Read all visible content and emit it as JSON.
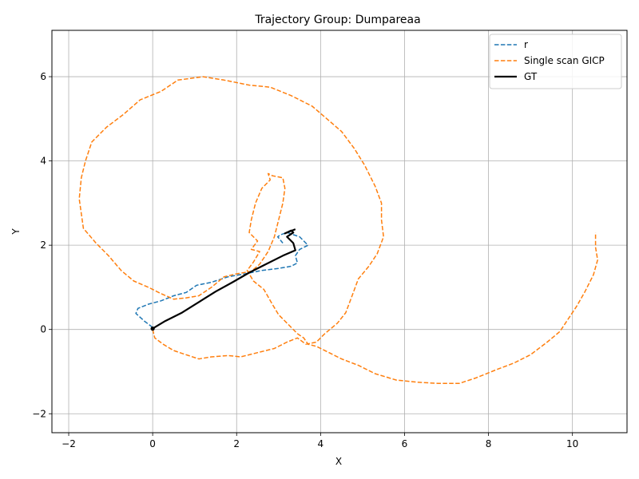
{
  "chart_data": {
    "type": "line",
    "title": "Trajectory Group: Dumpareaa",
    "xlabel": "X",
    "ylabel": "Y",
    "xlim": [
      -2.4,
      11.3
    ],
    "ylim": [
      -2.45,
      7.1
    ],
    "xticks": [
      -2,
      0,
      2,
      4,
      6,
      8,
      10
    ],
    "yticks": [
      -2,
      0,
      2,
      4,
      6
    ],
    "grid": true,
    "legend_position": "top-right",
    "series": [
      {
        "name": "r",
        "color": "#1f77b4",
        "style": "dashed",
        "points": [
          [
            0.0,
            0.05
          ],
          [
            -0.2,
            0.2
          ],
          [
            -0.4,
            0.38
          ],
          [
            -0.35,
            0.5
          ],
          [
            -0.1,
            0.6
          ],
          [
            0.2,
            0.68
          ],
          [
            0.5,
            0.8
          ],
          [
            0.8,
            0.88
          ],
          [
            1.05,
            1.05
          ],
          [
            1.4,
            1.12
          ],
          [
            1.8,
            1.25
          ],
          [
            2.2,
            1.32
          ],
          [
            2.6,
            1.4
          ],
          [
            3.0,
            1.45
          ],
          [
            3.3,
            1.5
          ],
          [
            3.45,
            1.58
          ],
          [
            3.4,
            1.75
          ],
          [
            3.5,
            1.9
          ],
          [
            3.7,
            2.0
          ],
          [
            3.5,
            2.2
          ],
          [
            3.2,
            2.3
          ],
          [
            3.05,
            2.25
          ],
          [
            2.98,
            2.2
          ],
          [
            3.1,
            2.05
          ]
        ]
      },
      {
        "name": "Single scan GICP",
        "color": "#ff7f0e",
        "style": "dashed",
        "points": [
          [
            0.0,
            0.0
          ],
          [
            0.05,
            -0.2
          ],
          [
            0.25,
            -0.35
          ],
          [
            0.5,
            -0.5
          ],
          [
            0.8,
            -0.6
          ],
          [
            1.1,
            -0.7
          ],
          [
            1.4,
            -0.65
          ],
          [
            1.8,
            -0.62
          ],
          [
            2.1,
            -0.65
          ],
          [
            2.5,
            -0.55
          ],
          [
            2.9,
            -0.45
          ],
          [
            3.2,
            -0.3
          ],
          [
            3.45,
            -0.2
          ],
          [
            3.65,
            -0.35
          ],
          [
            3.9,
            -0.3
          ],
          [
            4.1,
            -0.1
          ],
          [
            4.4,
            0.15
          ],
          [
            4.6,
            0.4
          ],
          [
            4.75,
            0.8
          ],
          [
            4.9,
            1.2
          ],
          [
            5.15,
            1.5
          ],
          [
            5.35,
            1.8
          ],
          [
            5.5,
            2.2
          ],
          [
            5.45,
            2.6
          ],
          [
            5.45,
            3.0
          ],
          [
            5.3,
            3.4
          ],
          [
            5.05,
            3.9
          ],
          [
            4.8,
            4.3
          ],
          [
            4.5,
            4.7
          ],
          [
            4.15,
            5.0
          ],
          [
            3.8,
            5.3
          ],
          [
            3.3,
            5.55
          ],
          [
            2.8,
            5.75
          ],
          [
            2.3,
            5.8
          ],
          [
            1.7,
            5.92
          ],
          [
            1.2,
            6.0
          ],
          [
            0.6,
            5.92
          ],
          [
            0.2,
            5.65
          ],
          [
            -0.3,
            5.45
          ],
          [
            -0.7,
            5.1
          ],
          [
            -1.1,
            4.8
          ],
          [
            -1.45,
            4.45
          ],
          [
            -1.6,
            4.0
          ],
          [
            -1.7,
            3.6
          ],
          [
            -1.75,
            3.1
          ],
          [
            -1.65,
            2.4
          ],
          [
            -1.35,
            2.05
          ],
          [
            -1.05,
            1.75
          ],
          [
            -0.75,
            1.4
          ],
          [
            -0.45,
            1.15
          ],
          [
            -0.1,
            1.0
          ],
          [
            0.2,
            0.85
          ],
          [
            0.5,
            0.72
          ],
          [
            0.8,
            0.75
          ],
          [
            1.1,
            0.8
          ],
          [
            1.4,
            1.0
          ],
          [
            1.7,
            1.25
          ],
          [
            2.0,
            1.32
          ],
          [
            2.35,
            1.38
          ],
          [
            2.55,
            1.55
          ],
          [
            2.75,
            1.85
          ],
          [
            2.9,
            2.2
          ],
          [
            3.0,
            2.6
          ],
          [
            3.1,
            3.0
          ],
          [
            3.15,
            3.35
          ],
          [
            3.1,
            3.6
          ],
          [
            2.85,
            3.65
          ],
          [
            2.75,
            3.7
          ],
          [
            2.8,
            3.55
          ],
          [
            2.6,
            3.35
          ],
          [
            2.45,
            3.0
          ],
          [
            2.35,
            2.6
          ],
          [
            2.3,
            2.3
          ],
          [
            2.5,
            2.1
          ],
          [
            2.35,
            1.9
          ],
          [
            2.55,
            1.85
          ],
          [
            2.4,
            1.6
          ],
          [
            2.25,
            1.4
          ],
          [
            2.4,
            1.15
          ],
          [
            2.65,
            0.95
          ],
          [
            2.85,
            0.6
          ],
          [
            3.0,
            0.35
          ],
          [
            3.25,
            0.1
          ],
          [
            3.45,
            -0.1
          ],
          [
            3.6,
            -0.2
          ],
          [
            3.7,
            -0.35
          ],
          [
            3.9,
            -0.4
          ],
          [
            4.2,
            -0.55
          ],
          [
            4.5,
            -0.7
          ],
          [
            4.9,
            -0.85
          ],
          [
            5.3,
            -1.05
          ],
          [
            5.8,
            -1.2
          ],
          [
            6.3,
            -1.25
          ],
          [
            6.8,
            -1.28
          ],
          [
            7.3,
            -1.28
          ],
          [
            7.7,
            -1.15
          ],
          [
            8.2,
            -0.95
          ],
          [
            8.6,
            -0.8
          ],
          [
            9.0,
            -0.6
          ],
          [
            9.4,
            -0.3
          ],
          [
            9.7,
            -0.05
          ],
          [
            9.9,
            0.25
          ],
          [
            10.1,
            0.55
          ],
          [
            10.3,
            0.9
          ],
          [
            10.5,
            1.3
          ],
          [
            10.6,
            1.65
          ],
          [
            10.55,
            1.95
          ],
          [
            10.55,
            2.3
          ]
        ]
      },
      {
        "name": "GT",
        "color": "#000000",
        "style": "solid",
        "points": [
          [
            0.0,
            0.02
          ],
          [
            0.3,
            0.2
          ],
          [
            0.7,
            0.4
          ],
          [
            1.1,
            0.65
          ],
          [
            1.5,
            0.9
          ],
          [
            1.9,
            1.12
          ],
          [
            2.3,
            1.35
          ],
          [
            2.7,
            1.55
          ],
          [
            3.1,
            1.75
          ],
          [
            3.4,
            1.88
          ],
          [
            3.35,
            2.05
          ],
          [
            3.2,
            2.2
          ],
          [
            3.35,
            2.3
          ],
          [
            3.3,
            2.35
          ],
          [
            3.15,
            2.28
          ],
          [
            3.4,
            2.38
          ]
        ]
      }
    ]
  }
}
